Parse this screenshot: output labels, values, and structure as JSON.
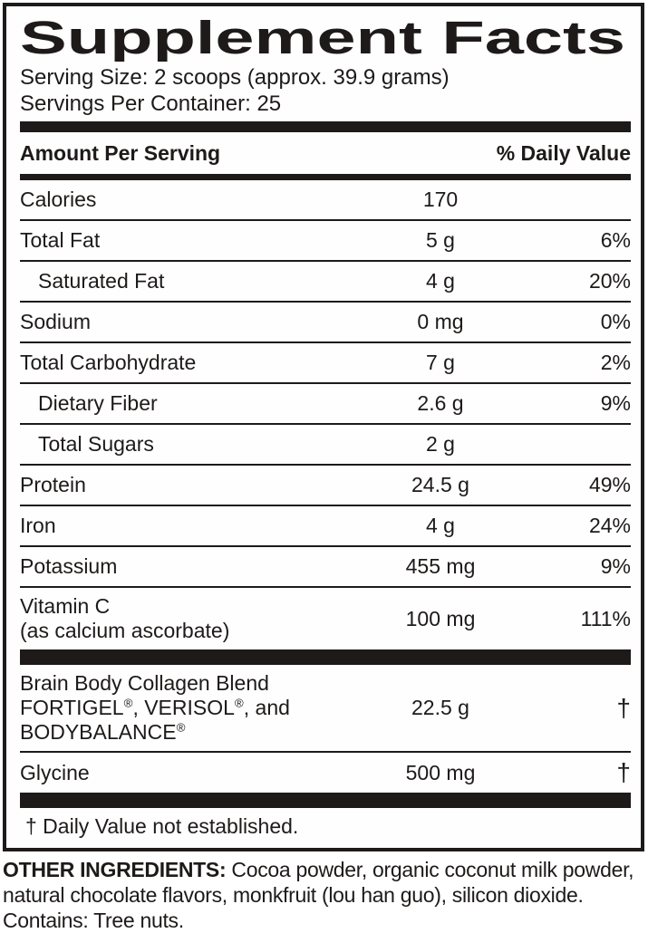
{
  "label": {
    "title": "Supplement Facts",
    "serving_size": "Serving Size: 2 scoops (approx. 39.9 grams)",
    "servings_per_container": "Servings Per Container: 25",
    "column_headers": {
      "left": "Amount Per Serving",
      "right": "% Daily Value"
    },
    "rows": [
      {
        "name": "Calories",
        "amount": "170",
        "dv": ""
      },
      {
        "name": "Total Fat",
        "amount": "5 g",
        "dv": "6%"
      },
      {
        "name": "Saturated Fat",
        "amount": "4 g",
        "dv": "20%"
      },
      {
        "name": "Sodium",
        "amount": "0 mg",
        "dv": "0%"
      },
      {
        "name": "Total Carbohydrate",
        "amount": "7 g",
        "dv": "2%"
      },
      {
        "name": "Dietary Fiber",
        "amount": "2.6 g",
        "dv": "9%"
      },
      {
        "name": "Total Sugars",
        "amount": "2 g",
        "dv": ""
      },
      {
        "name": "Protein",
        "amount": "24.5 g",
        "dv": "49%"
      },
      {
        "name": "Iron",
        "amount": "4 g",
        "dv": "24%"
      },
      {
        "name": "Potassium",
        "amount": "455 mg",
        "dv": "9%"
      },
      {
        "name": "Vitamin C\n(as calcium ascorbate)",
        "amount": "100 mg",
        "dv": "111%"
      }
    ],
    "blend_rows": [
      {
        "name": "Brain Body Collagen Blend\nFORTIGEL®, VERISOL®, and\nBODYBALANCE®",
        "amount": "22.5 g",
        "dv": "†"
      },
      {
        "name": "Glycine",
        "amount": "500 mg",
        "dv": "†"
      }
    ],
    "footnote": "† Daily Value not established."
  },
  "other_ingredients": {
    "heading": "OTHER INGREDIENTS:",
    "text": " Cocoa powder, organic coconut milk powder, natural chocolate flavors, monkfruit (lou han guo), silicon dioxide.",
    "contains": "Contains: Tree nuts."
  },
  "colors": {
    "ink": "#1d1a19",
    "background": "#ffffff"
  }
}
